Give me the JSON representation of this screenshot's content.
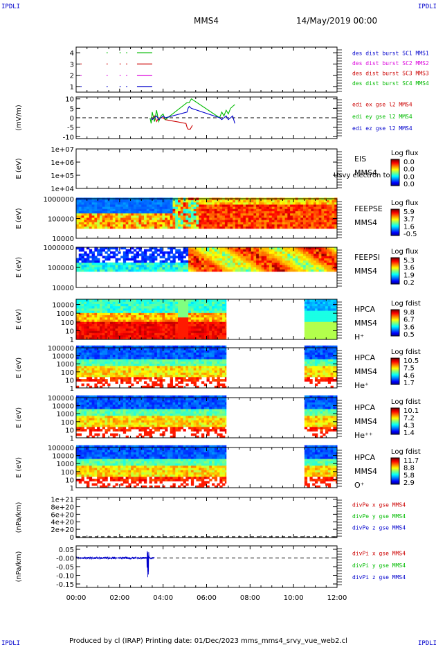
{
  "header": {
    "corner_label": "IPDLI",
    "spacecraft": "MMS4",
    "datetime": "14/May/2019 00:00"
  },
  "footer": {
    "text": "Produced by cl (IRAP)   Printing date: 01/Dec/2023   mms_mms4_srvy_vue_web2.cl"
  },
  "time_axis": {
    "ticks": [
      "00:00",
      "02:00",
      "04:00",
      "06:00",
      "08:00",
      "10:00",
      "12:00"
    ],
    "range_hours": [
      0,
      12
    ]
  },
  "colors": {
    "blue": "#0000cc",
    "magenta": "#dd00dd",
    "red": "#cc0000",
    "green": "#00bb00"
  },
  "chart_data": [
    {
      "id": "burst",
      "type": "line",
      "ylim": [
        0.5,
        4.5
      ],
      "yticks": [
        "1",
        "2",
        "3",
        "4"
      ],
      "ytick_values": [
        1,
        2,
        3,
        4
      ],
      "legend": [
        {
          "name": "des dist burst SC1 MMS1",
          "color": "#0000cc"
        },
        {
          "name": "des dist burst SC2 MMS2",
          "color": "#dd00dd"
        },
        {
          "name": "des dist burst SC3 MMS3",
          "color": "#cc0000"
        },
        {
          "name": "des dist burst SC4 MMS4",
          "color": "#00bb00"
        }
      ],
      "series": [
        {
          "name": "des dist burst SC1 MMS1",
          "level": 1,
          "intervals": [
            [
              0.2,
              0.25
            ],
            [
              1.4,
              1.45
            ],
            [
              2.0,
              2.05
            ],
            [
              2.3,
              2.35
            ],
            [
              2.8,
              3.5
            ]
          ]
        },
        {
          "name": "des dist burst SC2 MMS2",
          "level": 2,
          "intervals": [
            [
              0.2,
              0.25
            ],
            [
              1.4,
              1.45
            ],
            [
              2.0,
              2.05
            ],
            [
              2.3,
              2.35
            ],
            [
              2.8,
              3.5
            ]
          ]
        },
        {
          "name": "des dist burst SC3 MMS3",
          "level": 3,
          "intervals": [
            [
              0.2,
              0.25
            ],
            [
              1.4,
              1.45
            ],
            [
              2.0,
              2.05
            ],
            [
              2.3,
              2.35
            ],
            [
              2.8,
              3.5
            ]
          ]
        },
        {
          "name": "des dist burst SC4 MMS4",
          "level": 4,
          "intervals": [
            [
              1.4,
              1.45
            ],
            [
              2.0,
              2.05
            ],
            [
              2.3,
              2.35
            ],
            [
              2.8,
              3.5
            ]
          ]
        }
      ]
    },
    {
      "id": "edi",
      "type": "line",
      "ylabel": "(mV/m)",
      "ylim": [
        -11,
        11
      ],
      "yticks": [
        "10",
        "5",
        "0",
        "-5",
        "-10"
      ],
      "ytick_values": [
        10,
        5,
        0,
        -5,
        -10
      ],
      "legend": [
        {
          "name": "edi ex gse l2 MMS4",
          "color": "#cc0000"
        },
        {
          "name": "edi ey gse l2 MMS4",
          "color": "#00bb00"
        },
        {
          "name": "edi ez gse l2 MMS4",
          "color": "#0000cc"
        }
      ],
      "series": [
        {
          "name": "edi ex gse l2 MMS4",
          "x": [
            3.45,
            3.5,
            3.6,
            3.7,
            3.8,
            4.0,
            4.1,
            5.05,
            5.1,
            5.15,
            5.25,
            5.3,
            5.35
          ],
          "y": [
            0,
            -1,
            1,
            -2,
            0,
            0,
            -1,
            -3,
            -5,
            -6,
            -6,
            -5,
            -4
          ]
        },
        {
          "name": "edi ey gse l2 MMS4",
          "x": [
            3.4,
            3.45,
            3.5,
            3.6,
            3.7,
            3.8,
            3.9,
            4.0,
            4.1,
            5.1,
            5.2,
            5.3,
            6.6,
            6.7,
            6.8,
            6.9,
            7.0,
            7.1,
            7.2,
            7.3
          ],
          "y": [
            0,
            -3,
            3,
            -2,
            4,
            -2,
            1,
            2,
            -1,
            8,
            8,
            10,
            0,
            3,
            1,
            4,
            2,
            5,
            6,
            7
          ]
        },
        {
          "name": "edi ez gse l2 MMS4",
          "x": [
            3.45,
            3.5,
            3.6,
            3.7,
            3.8,
            3.9,
            4.0,
            4.1,
            5.1,
            5.15,
            5.2,
            5.3,
            6.6,
            6.7,
            6.8,
            6.9,
            7.0,
            7.1,
            7.2,
            7.3
          ],
          "y": [
            0,
            -1,
            0,
            1,
            -1,
            0,
            1,
            0,
            3,
            5,
            6,
            5,
            0,
            -1,
            0,
            1,
            -1,
            0,
            1,
            -3
          ]
        }
      ]
    },
    {
      "id": "eis",
      "type": "heatmap",
      "ylabel": "E (eV)",
      "yticks": [
        "1e+07",
        "1e+06",
        "1e+05",
        "1e+04"
      ],
      "ytick_values": [
        7,
        6,
        5,
        4
      ],
      "ylim_log10": [
        4,
        7
      ],
      "labels": [
        "EIS",
        "MMS4"
      ],
      "overlay_text": "Usvy electron to",
      "cbar_title": "Log flux",
      "cbar_ticks": [
        "0.0",
        "0.0",
        "0.0",
        "0.0"
      ],
      "coverage": []
    },
    {
      "id": "feepse",
      "type": "heatmap",
      "ylabel": "E (eV)",
      "yticks": [
        "1000000",
        "100000",
        "10000"
      ],
      "ytick_values": [
        6,
        5,
        4
      ],
      "ylim_log10": [
        4,
        6
      ],
      "labels": [
        "FEEPSE",
        "MMS4"
      ],
      "cbar_title": "Log flux",
      "cbar_ticks": [
        "5.9",
        "3.7",
        "1.6",
        "-0.5"
      ],
      "coverage": [
        [
          0,
          12
        ]
      ],
      "low_cut": 4.5,
      "profile": "feepse"
    },
    {
      "id": "feepsi",
      "type": "heatmap",
      "ylabel": "E (eV)",
      "yticks": [
        "1000000",
        "100000",
        "10000"
      ],
      "ytick_values": [
        6,
        5,
        4
      ],
      "ylim_log10": [
        4,
        6
      ],
      "labels": [
        "FEEPSI",
        "MMS4"
      ],
      "cbar_title": "Log flux",
      "cbar_ticks": [
        "5.3",
        "3.6",
        "1.9",
        "0.2"
      ],
      "coverage": [
        [
          0,
          12
        ]
      ],
      "low_cut": 4.8,
      "profile": "feepsi"
    },
    {
      "id": "hpca_h",
      "type": "heatmap",
      "ylabel": "E (eV)",
      "yticks": [
        "10000",
        "1000",
        "100",
        "10",
        "1"
      ],
      "ytick_values": [
        4,
        3,
        2,
        1,
        0
      ],
      "ylim_log10": [
        0,
        4.6
      ],
      "labels": [
        "HPCA",
        "MMS4",
        "H⁺"
      ],
      "cbar_title": "Log fdist",
      "cbar_ticks": [
        "9.8",
        "6.7",
        "3.6",
        "0.5"
      ],
      "coverage": [
        [
          0,
          6.9
        ],
        [
          10.5,
          12
        ]
      ],
      "profile": "hplus"
    },
    {
      "id": "hpca_he",
      "type": "heatmap",
      "ylabel": "E (eV)",
      "yticks": [
        "100000",
        "10000",
        "1000",
        "100",
        "10",
        "1"
      ],
      "ytick_values": [
        5,
        4,
        3,
        2,
        1,
        0
      ],
      "ylim_log10": [
        0,
        5
      ],
      "labels": [
        "HPCA",
        "MMS4",
        "He⁺"
      ],
      "cbar_title": "Log fdist",
      "cbar_ticks": [
        "10.5",
        "7.5",
        "4.6",
        "1.7"
      ],
      "coverage": [
        [
          0,
          6.9
        ],
        [
          10.5,
          12
        ]
      ],
      "profile": "heplus"
    },
    {
      "id": "hpca_hepp",
      "type": "heatmap",
      "ylabel": "E (eV)",
      "yticks": [
        "100000",
        "10000",
        "1000",
        "100",
        "10",
        "1"
      ],
      "ytick_values": [
        5,
        4,
        3,
        2,
        1,
        0
      ],
      "ylim_log10": [
        0,
        5
      ],
      "labels": [
        "HPCA",
        "MMS4",
        "He⁺⁺"
      ],
      "cbar_title": "Log fdist",
      "cbar_ticks": [
        "10.1",
        "7.2",
        "4.3",
        "1.4"
      ],
      "coverage": [
        [
          0,
          6.9
        ],
        [
          10.5,
          12
        ]
      ],
      "profile": "hepp"
    },
    {
      "id": "hpca_o",
      "type": "heatmap",
      "ylabel": "E (eV)",
      "yticks": [
        "100000",
        "10000",
        "1000",
        "100",
        "10",
        "1"
      ],
      "ytick_values": [
        5,
        4,
        3,
        2,
        1,
        0
      ],
      "ylim_log10": [
        0,
        5
      ],
      "labels": [
        "HPCA",
        "MMS4",
        "O⁺"
      ],
      "cbar_title": "Log fdist",
      "cbar_ticks": [
        "11.7",
        "8.8",
        "5.8",
        "2.9"
      ],
      "coverage": [
        [
          0,
          6.9
        ],
        [
          10.5,
          12
        ]
      ],
      "profile": "oplus"
    },
    {
      "id": "divpe",
      "type": "line",
      "ylabel": "(nPa/km)",
      "ylim": [
        -2e+19,
        1.05e+21
      ],
      "yticks": [
        "1e+21",
        "8e+20",
        "6e+20",
        "4e+20",
        "2e+20",
        "0"
      ],
      "ytick_values": [
        1e+21,
        8e+20,
        6e+20,
        4e+20,
        2e+20,
        0
      ],
      "legend": [
        {
          "name": "divPe x gse MMS4",
          "color": "#cc0000"
        },
        {
          "name": "divPe y gse MMS4",
          "color": "#00bb00"
        },
        {
          "name": "divPe z gse MMS4",
          "color": "#0000cc"
        }
      ],
      "series": []
    },
    {
      "id": "divpi",
      "type": "line",
      "ylabel": "(nPa/km)",
      "ylim": [
        -0.17,
        0.07
      ],
      "yticks": [
        "0.05",
        "-0.00",
        "-0.05",
        "-0.10",
        "-0.15"
      ],
      "ytick_values": [
        0.05,
        0,
        -0.05,
        -0.1,
        -0.15
      ],
      "legend": [
        {
          "name": "divPi x gse MMS4",
          "color": "#cc0000"
        },
        {
          "name": "divPi y gse MMS4",
          "color": "#00bb00"
        },
        {
          "name": "divPi z gse MMS4",
          "color": "#0000cc"
        }
      ],
      "series": [
        {
          "name": "divPi z gse MMS4",
          "x_range": [
            0,
            3.6
          ],
          "noise": 0.006,
          "spike_at": 3.3,
          "spike_min": -0.15,
          "spike_max": 0.04
        }
      ]
    }
  ]
}
